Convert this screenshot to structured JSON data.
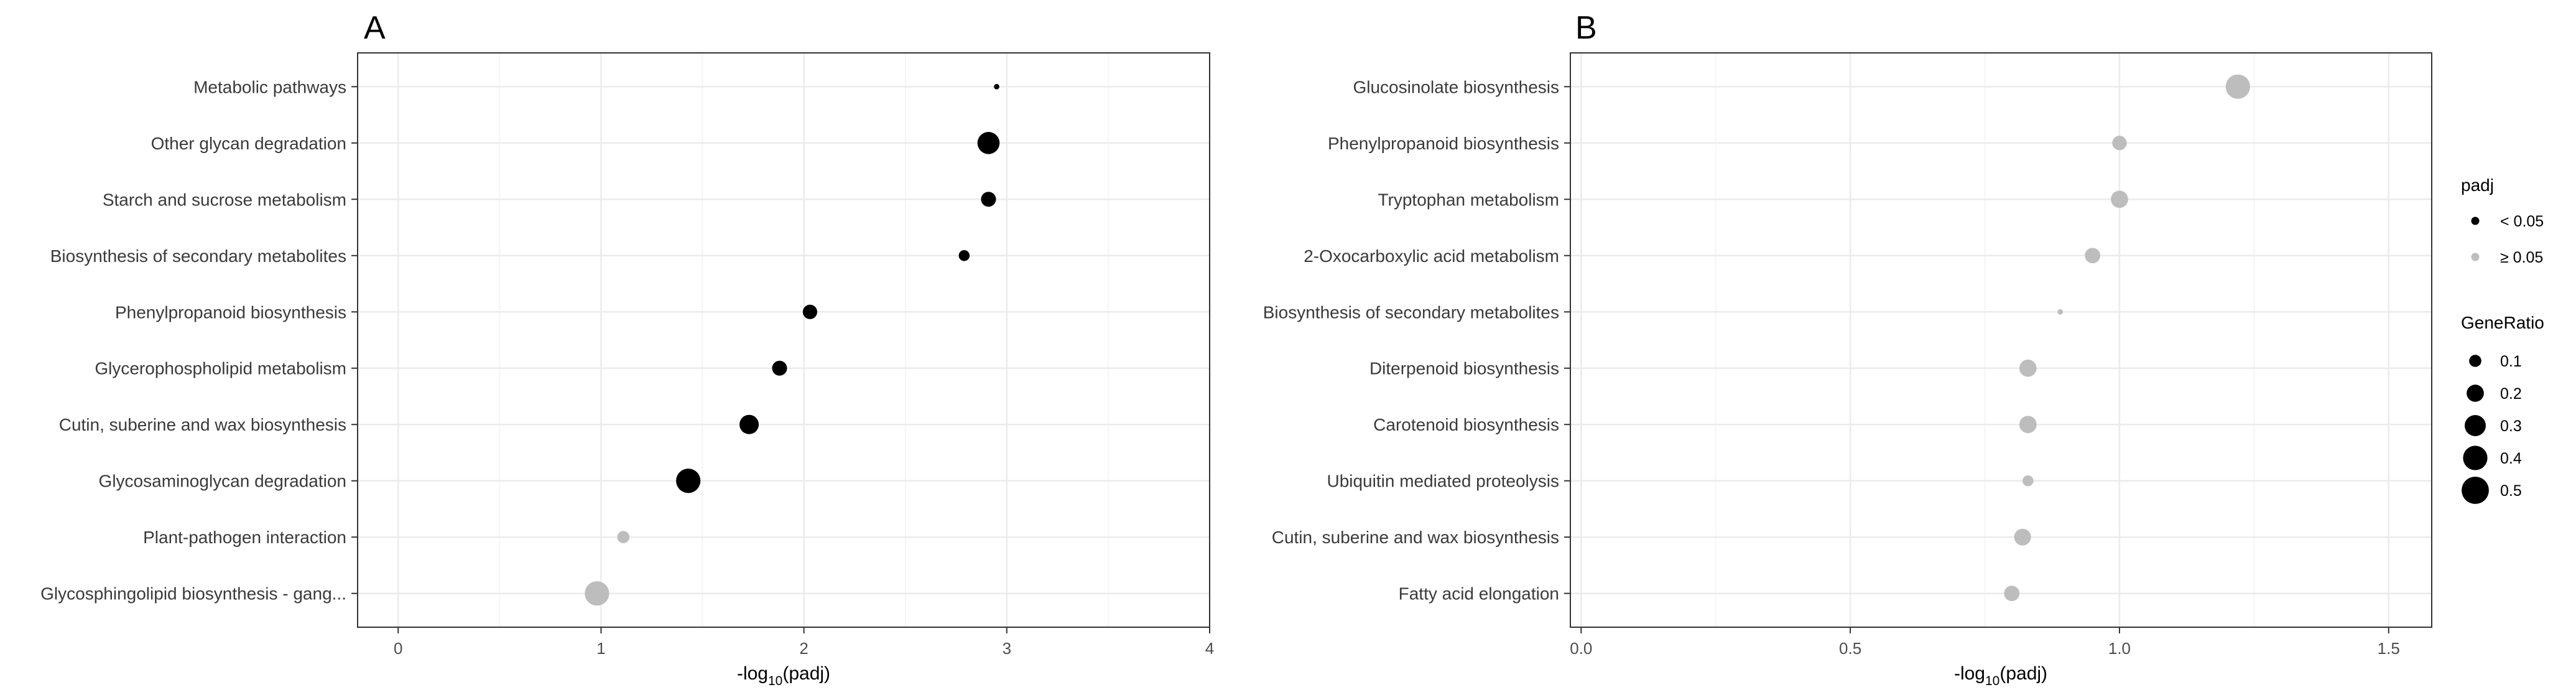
{
  "colors": {
    "significant": "#000000",
    "not_significant": "#bdbdbd",
    "panel_border": "#333333",
    "grid_major": "#ebebeb",
    "grid_minor": "#f5f5f5"
  },
  "chart_data": [
    {
      "type": "scatter",
      "panel_label": "A",
      "xlabel_main": "-log",
      "xlabel_sub": "10",
      "xlabel_tail": "(padj)",
      "ylabel": "",
      "xlim": [
        -0.2,
        4.0
      ],
      "xticks": [
        0,
        1,
        2,
        3,
        4
      ],
      "xtick_labels": [
        "0",
        "1",
        "2",
        "3",
        "4"
      ],
      "categories": [
        "Metabolic pathways",
        "Other glycan degradation",
        "Starch and sucrose metabolism",
        "Biosynthesis of secondary metabolites",
        "Phenylpropanoid biosynthesis",
        "Glycerophospholipid metabolism",
        "Cutin, suberine and wax biosynthesis",
        "Glycosaminoglycan degradation",
        "Plant-pathogen interaction",
        "Glycosphingolipid biosynthesis - gang..."
      ],
      "x": [
        2.95,
        2.91,
        2.91,
        2.79,
        2.03,
        1.88,
        1.73,
        1.43,
        1.11,
        0.98
      ],
      "gene_ratio": [
        0.02,
        0.33,
        0.15,
        0.08,
        0.14,
        0.15,
        0.25,
        0.4,
        0.1,
        0.4
      ],
      "significant": [
        true,
        true,
        true,
        true,
        true,
        true,
        true,
        true,
        false,
        false
      ]
    },
    {
      "type": "scatter",
      "panel_label": "B",
      "xlabel_main": "-log",
      "xlabel_sub": "10",
      "xlabel_tail": "(padj)",
      "ylabel": "",
      "xlim": [
        -0.02,
        1.58
      ],
      "xticks": [
        0,
        0.5,
        1.0,
        1.5
      ],
      "xtick_labels": [
        "0.0",
        "0.5",
        "1.0",
        "1.5"
      ],
      "categories": [
        "Glucosinolate biosynthesis",
        "Phenylpropanoid biosynthesis",
        "Tryptophan metabolism",
        "2-Oxocarboxylic acid metabolism",
        "Biosynthesis of secondary metabolites",
        "Diterpenoid biosynthesis",
        "Carotenoid biosynthesis",
        "Ubiquitin mediated proteolysis",
        "Cutin, suberine and wax biosynthesis",
        "Fatty acid elongation"
      ],
      "x": [
        1.22,
        1.0,
        1.0,
        0.95,
        0.89,
        0.83,
        0.83,
        0.83,
        0.82,
        0.8
      ],
      "gene_ratio": [
        0.4,
        0.14,
        0.2,
        0.16,
        0.02,
        0.2,
        0.2,
        0.08,
        0.19,
        0.16
      ],
      "significant": [
        false,
        false,
        false,
        false,
        false,
        false,
        false,
        false,
        false,
        false
      ]
    }
  ],
  "legend": {
    "padj_title": "padj",
    "padj_entries": [
      "< 0.05",
      "≥ 0.05"
    ],
    "generatio_title": "GeneRatio",
    "generatio_entries": [
      {
        "label": "0.1",
        "value": 0.1
      },
      {
        "label": "0.2",
        "value": 0.2
      },
      {
        "label": "0.3",
        "value": 0.3
      },
      {
        "label": "0.4",
        "value": 0.4
      },
      {
        "label": "0.5",
        "value": 0.5
      }
    ]
  }
}
